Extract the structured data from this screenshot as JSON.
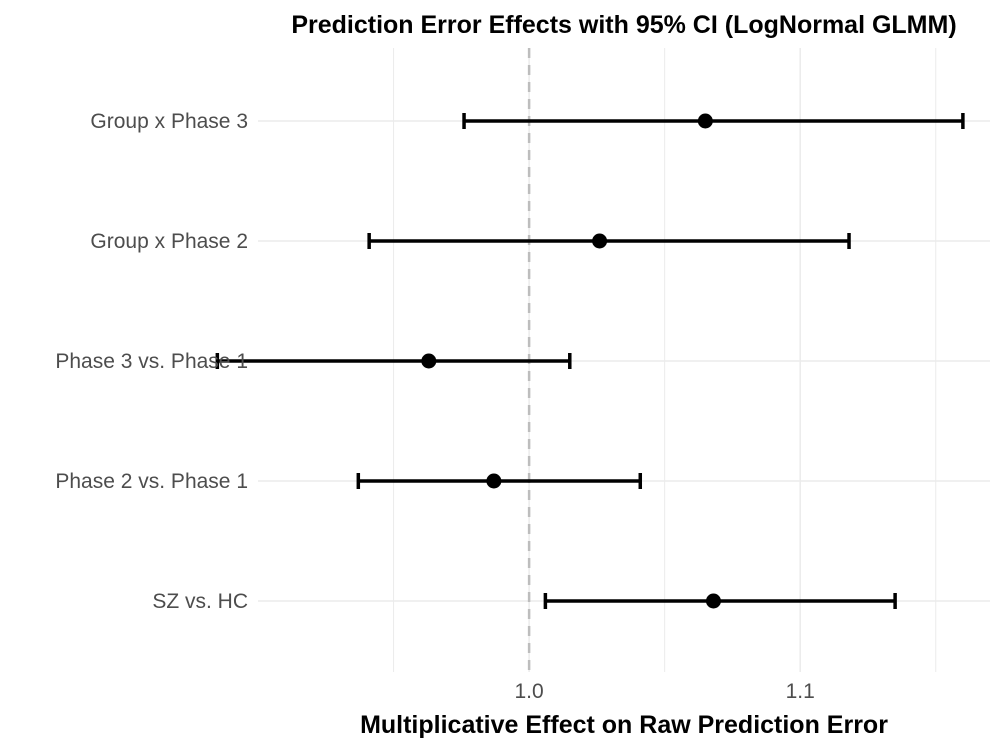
{
  "chart_data": {
    "type": "forest",
    "title": "Prediction Error Effects with 95% CI (LogNormal GLMM)",
    "xlabel": "Multiplicative Effect on Raw Prediction Error",
    "ylabel": "",
    "xlim": [
      0.9,
      1.17
    ],
    "x_ticks": [
      1.0,
      1.1
    ],
    "x_tick_labels": [
      "1.0",
      "1.1"
    ],
    "reference_line": 1.0,
    "grid": true,
    "categories": [
      "Group x Phase 3",
      "Group x Phase 2",
      "Phase 3 vs. Phase 1",
      "Phase 2 vs. Phase 1",
      "SZ vs. HC"
    ],
    "estimates": [
      1.065,
      1.026,
      0.963,
      0.987,
      1.068
    ],
    "ci_lower": [
      0.976,
      0.941,
      0.885,
      0.937,
      1.006
    ],
    "ci_upper": [
      1.16,
      1.118,
      1.015,
      1.041,
      1.135
    ],
    "colors": {
      "marks": "#000000",
      "reference_line": "#bdbdbd",
      "grid": "#ebebeb",
      "tick_text": "#4d4d4d"
    }
  }
}
